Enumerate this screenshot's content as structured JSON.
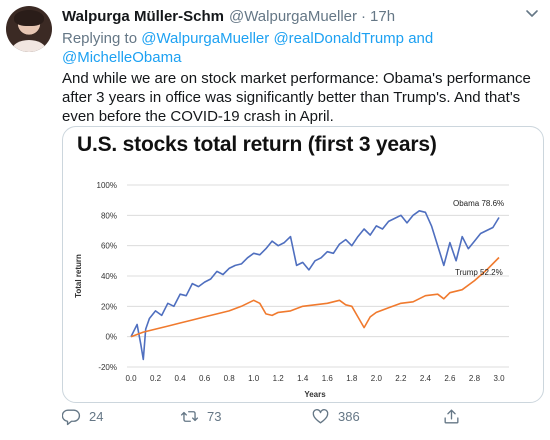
{
  "tweet": {
    "author_name": "Walpurga Müller-Schm",
    "author_handle": "@WalpurgaMueller",
    "separator": "·",
    "time": "17h",
    "replying_prefix": "Replying to",
    "mention_1": "@WalpurgaMueller",
    "mention_2": "@realDonaldTrump",
    "reply_and": "and",
    "mention_3": "@MichelleObama",
    "text": "And while we are on stock market performance: Obama's performance after 3 years in office was significantly better than Trump's. And that's even before the COVID-19 crash in April."
  },
  "actions": {
    "reply_count": "24",
    "retweet_count": "73",
    "like_count": "386"
  },
  "colors": {
    "obama": "#4f6fbf",
    "trump": "#f07a2e",
    "link": "#1da1f2"
  },
  "chart_data": {
    "type": "line",
    "title": "U.S. stocks total return (first 3 years)",
    "xlabel": "Years",
    "ylabel": "Total return",
    "xlim": [
      0.0,
      3.0
    ],
    "ylim": [
      -20,
      100
    ],
    "x_ticks": [
      "0.0",
      "0.2",
      "0.4",
      "0.6",
      "0.8",
      "1.0",
      "1.2",
      "1.4",
      "1.6",
      "1.8",
      "2.0",
      "2.2",
      "2.4",
      "2.6",
      "2.8",
      "3.0"
    ],
    "y_ticks": [
      "-20%",
      "0%",
      "20%",
      "40%",
      "60%",
      "80%",
      "100%"
    ],
    "grid": "horizontal",
    "series": [
      {
        "name": "Obama",
        "label": "Obama 78.6%",
        "x": [
          0.0,
          0.05,
          0.08,
          0.1,
          0.12,
          0.15,
          0.2,
          0.25,
          0.3,
          0.35,
          0.4,
          0.45,
          0.5,
          0.55,
          0.6,
          0.65,
          0.7,
          0.75,
          0.8,
          0.85,
          0.9,
          0.95,
          1.0,
          1.05,
          1.1,
          1.15,
          1.2,
          1.25,
          1.3,
          1.35,
          1.4,
          1.45,
          1.5,
          1.55,
          1.6,
          1.65,
          1.7,
          1.75,
          1.8,
          1.85,
          1.9,
          1.95,
          2.0,
          2.05,
          2.1,
          2.15,
          2.2,
          2.25,
          2.3,
          2.35,
          2.4,
          2.45,
          2.5,
          2.55,
          2.6,
          2.65,
          2.7,
          2.75,
          2.8,
          2.85,
          2.9,
          2.95,
          3.0
        ],
        "y": [
          0,
          8,
          -5,
          -15,
          5,
          12,
          17,
          14,
          22,
          20,
          28,
          27,
          35,
          33,
          36,
          38,
          43,
          41,
          45,
          47,
          48,
          52,
          55,
          54,
          58,
          63,
          60,
          62,
          66,
          47,
          49,
          44,
          50,
          52,
          56,
          55,
          61,
          64,
          60,
          66,
          71,
          67,
          73,
          71,
          76,
          78,
          80,
          75,
          80,
          83,
          82,
          73,
          60,
          47,
          62,
          50,
          66,
          58,
          63,
          68,
          70,
          72,
          78.6
        ]
      },
      {
        "name": "Trump",
        "label": "Trump 52.2%",
        "x": [
          0.0,
          0.1,
          0.2,
          0.3,
          0.4,
          0.5,
          0.6,
          0.7,
          0.8,
          0.9,
          1.0,
          1.05,
          1.1,
          1.15,
          1.2,
          1.3,
          1.4,
          1.5,
          1.6,
          1.7,
          1.75,
          1.8,
          1.85,
          1.9,
          1.95,
          2.0,
          2.1,
          2.2,
          2.3,
          2.4,
          2.5,
          2.55,
          2.6,
          2.7,
          2.8,
          2.9,
          3.0
        ],
        "y": [
          0,
          3,
          5,
          7,
          9,
          11,
          13,
          15,
          17,
          20,
          24,
          22,
          15,
          14,
          16,
          17,
          20,
          21,
          22,
          24,
          21,
          20,
          13,
          6,
          13,
          16,
          19,
          22,
          23,
          27,
          28,
          25,
          29,
          31,
          37,
          44,
          52.2
        ]
      }
    ]
  }
}
